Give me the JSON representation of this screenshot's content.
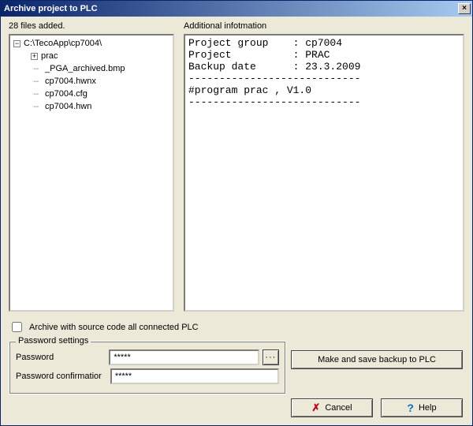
{
  "window": {
    "title": "Archive project to PLC",
    "close_symbol": "×"
  },
  "left": {
    "label": "28 files added.",
    "tree": {
      "root": {
        "expand": "−",
        "label": "C:\\TecoApp\\cp7004\\"
      },
      "children": [
        {
          "expand": "+",
          "label": "prac"
        },
        {
          "expand": "",
          "label": "_PGA_archived.bmp"
        },
        {
          "expand": "",
          "label": "cp7004.hwnx"
        },
        {
          "expand": "",
          "label": "cp7004.cfg"
        },
        {
          "expand": "",
          "label": "cp7004.hwn"
        }
      ]
    }
  },
  "right": {
    "label": "Additional infotmation",
    "info_lines": {
      "l1": "Project group    : cp7004",
      "l2": "Project          : PRAC",
      "l3": "Backup date      : 23.3.2009",
      "l4": "----------------------------",
      "l5": "#program prac , V1.0",
      "l6": "----------------------------"
    }
  },
  "checkbox": {
    "checked": false,
    "label": "Archive with source code all connected PLC"
  },
  "password_group": {
    "title": "Password settings",
    "password_label": "Password",
    "password_value": "*****",
    "reveal_label": "···",
    "confirm_label": "Password confirmatior",
    "confirm_value": "*****"
  },
  "buttons": {
    "make_backup": "Make and save backup to PLC",
    "cancel": "Cancel",
    "help": "Help"
  },
  "colors": {
    "window_bg": "#ece9d8",
    "titlebar_start": "#0a246a",
    "titlebar_end": "#a6caf0",
    "panel_bg": "#ffffff",
    "cancel_icon": "#c00020",
    "help_icon": "#0070c0"
  }
}
